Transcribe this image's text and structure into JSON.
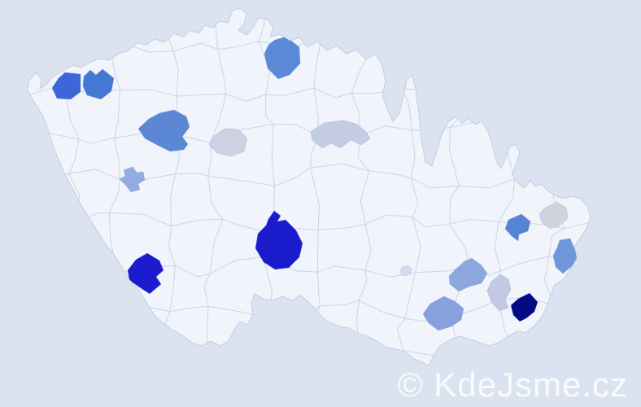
{
  "watermark": {
    "text": "© KdeJsme.cz",
    "color": "rgba(255,255,255,0.80)"
  },
  "map": {
    "description": "Choropleth map of Czech Republic districts with highlighted regions",
    "background_color": "#dbe3f0",
    "land_color": "#f1f4fa",
    "border_color": "#cad4e9",
    "outline_color": "#c2cce4",
    "regions": [
      {
        "id": "district-northwest-west",
        "color": "#3d66d8",
        "shade": "strong-blue"
      },
      {
        "id": "district-northwest-east",
        "color": "#4478d2",
        "shade": "strong-blue"
      },
      {
        "id": "district-north",
        "color": "#5c89d6",
        "shade": "medium-blue"
      },
      {
        "id": "district-west-central",
        "color": "#5c87d4",
        "shade": "medium-blue"
      },
      {
        "id": "district-west-small",
        "color": "#93acdf",
        "shade": "light-blue"
      },
      {
        "id": "district-central-gray",
        "color": "#cdd2e3",
        "shade": "pale-gray"
      },
      {
        "id": "district-north-central-light",
        "color": "#c5cde4",
        "shade": "pale-blue"
      },
      {
        "id": "district-center-dark",
        "color": "#1b1bce",
        "shade": "dark-royal-blue"
      },
      {
        "id": "district-southwest-dark",
        "color": "#1b1bce",
        "shade": "dark-royal-blue"
      },
      {
        "id": "district-east-upper",
        "color": "#5584d7",
        "shade": "medium-blue"
      },
      {
        "id": "district-northeast-gray",
        "color": "#d0d4df",
        "shade": "pale-gray"
      },
      {
        "id": "district-east-lower",
        "color": "#6e96da",
        "shade": "medium-blue"
      },
      {
        "id": "district-southeast-upper",
        "color": "#8ca7de",
        "shade": "light-blue"
      },
      {
        "id": "district-southeast-lower",
        "color": "#86a1dd",
        "shade": "light-blue"
      },
      {
        "id": "district-southeast-pale",
        "color": "#c3c9e2",
        "shade": "pale-blue"
      },
      {
        "id": "district-southeast-navy",
        "color": "#020b84",
        "shade": "navy"
      },
      {
        "id": "district-south-central-dot",
        "color": "#d4dcee",
        "shade": "pale-blue"
      }
    ]
  }
}
